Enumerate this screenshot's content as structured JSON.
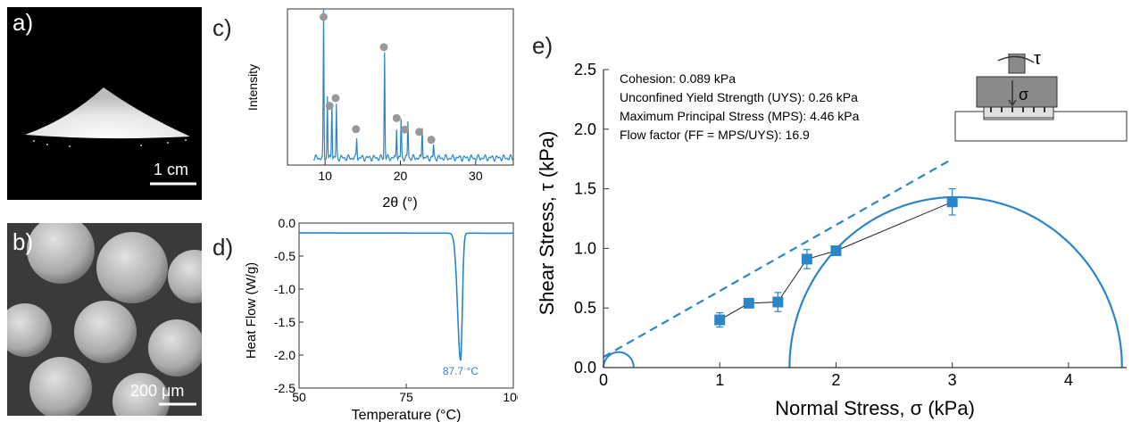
{
  "figure": {
    "panels": {
      "a": {
        "letter": "a)",
        "scale_bar": "1 cm"
      },
      "b": {
        "letter": "b)",
        "scale_bar": "200 μm"
      },
      "c": {
        "letter": "c)"
      },
      "d": {
        "letter": "d)"
      },
      "e": {
        "letter": "e)"
      }
    },
    "annotations": {
      "cohesion": "Cohesion: 0.089 kPa",
      "uys": "Unconfined Yield Strength (UYS): 0.26 kPa",
      "mps": "Maximum Principal Stress (MPS): 4.46 kPa",
      "ff": "Flow factor (FF = MPS/UYS): 16.9",
      "tau_symbol": "τ",
      "sigma_symbol": "σ",
      "peak_label": "87.7 °C"
    },
    "colors": {
      "line": "#2a86c8",
      "marker": "#2a86c8",
      "dot": "#999999"
    }
  },
  "chart_data": [
    {
      "type": "line",
      "panel": "c",
      "xlabel": "2θ (°)",
      "ylabel": "Intensity",
      "xlim": [
        5,
        35
      ],
      "xticks": [
        10,
        20,
        30
      ],
      "peaks": [
        {
          "x": 9.8,
          "y": 1.0
        },
        {
          "x": 10.3,
          "y": 0.42
        },
        {
          "x": 10.9,
          "y": 0.38
        },
        {
          "x": 11.5,
          "y": 0.36
        },
        {
          "x": 14.2,
          "y": 0.14
        },
        {
          "x": 17.9,
          "y": 0.72
        },
        {
          "x": 19.5,
          "y": 0.21
        },
        {
          "x": 20.1,
          "y": 0.26
        },
        {
          "x": 21.0,
          "y": 0.25
        },
        {
          "x": 22.9,
          "y": 0.22
        },
        {
          "x": 24.4,
          "y": 0.09
        }
      ],
      "dots_x": [
        9.8,
        10.6,
        11.4,
        14.1,
        17.8,
        19.5,
        20.6,
        22.5,
        24.1
      ]
    },
    {
      "type": "line",
      "panel": "d",
      "xlabel": "Temperature (°C)",
      "ylabel": "Heat Flow (W/g)",
      "xlim": [
        50,
        100
      ],
      "ylim": [
        -2.5,
        0.0
      ],
      "xticks": [
        50,
        75,
        100
      ],
      "yticks": [
        0.0,
        -0.5,
        -1.0,
        -1.5,
        -2.0,
        -2.5
      ],
      "peak": {
        "x": 87.7,
        "y": -2.08
      },
      "baseline": -0.15
    },
    {
      "type": "scatter",
      "panel": "e",
      "xlabel": "Normal Stress, σ (kPa)",
      "ylabel": "Shear Stress, τ (kPa)",
      "xlim": [
        0,
        4.5
      ],
      "ylim": [
        0,
        2.5
      ],
      "xticks": [
        0,
        1,
        2,
        3,
        4
      ],
      "yticks": [
        0.0,
        0.5,
        1.0,
        1.5,
        2.0,
        2.5
      ],
      "x": [
        1.0,
        1.25,
        1.5,
        1.75,
        2.0,
        3.0
      ],
      "y": [
        0.4,
        0.54,
        0.55,
        0.91,
        0.98,
        1.39
      ],
      "err": [
        0.06,
        0.03,
        0.08,
        0.08,
        0.03,
        0.11
      ],
      "large_circle": {
        "center": 3.03,
        "radius": 1.43
      },
      "small_circle": {
        "center": 0.13,
        "radius": 0.13
      },
      "fit_line": {
        "x0": 0,
        "y0": 0.089,
        "x1": 3.0,
        "y1": 1.75
      }
    }
  ]
}
